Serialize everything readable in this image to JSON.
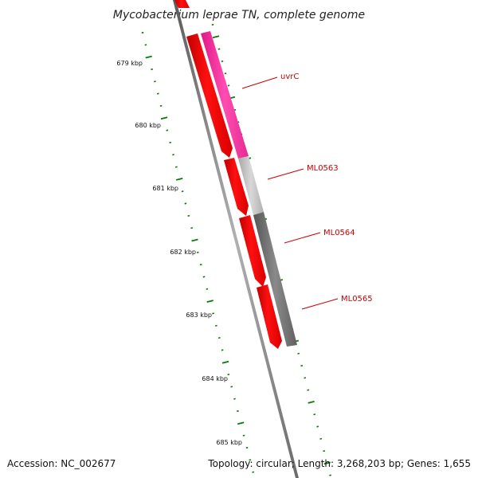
{
  "title": "Mycobacterium leprae TN, complete genome",
  "footer": {
    "accession": "Accession: NC_002677",
    "summary": "Topology: circular; Length: 3,268,203 bp; Genes: 1,655"
  },
  "scale": {
    "unit_labels": [
      "679 kbp",
      "680 kbp",
      "681 kbp",
      "682 kbp",
      "683 kbp",
      "684 kbp",
      "685 kbp"
    ]
  },
  "genes": [
    {
      "name": "uvrC",
      "track": "outer",
      "color": "#ff3399",
      "strand": "forward"
    },
    {
      "name": "ML0563",
      "track": "outer",
      "color": "#c0c0c0",
      "strand": "forward"
    },
    {
      "name": "ML0564",
      "track": "outer",
      "color": "#777777",
      "strand": "forward"
    },
    {
      "name": "ML0565",
      "track": "inner",
      "color": "#ff0000",
      "strand": "forward"
    }
  ],
  "colors": {
    "backbone": "#808080",
    "cds": "#ff0000",
    "tick": "#0a7a0a",
    "label": "#cc0000"
  }
}
